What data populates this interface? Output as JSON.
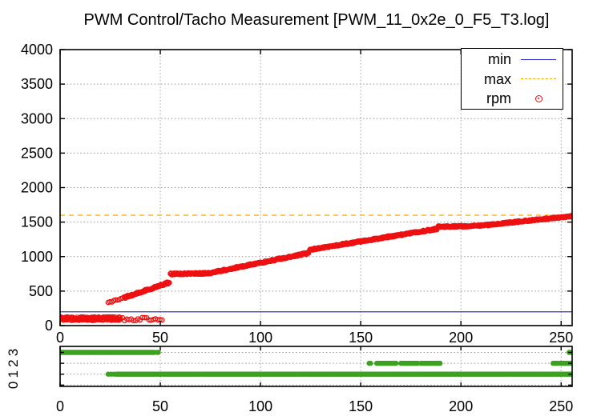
{
  "title": "PWM Control/Tacho Measurement [PWM_11_0x2e_0_F5_T3.log]",
  "colors": {
    "min": "#3434c8",
    "max": "#ffa500",
    "rpm": "#ee1111",
    "duty": "#3da120",
    "grid": "#9c9c9c",
    "axis": "#000000",
    "background": "#ffffff"
  },
  "legend": {
    "position": "top-right",
    "entries": [
      {
        "label": "min",
        "sample": "solid-line"
      },
      {
        "label": "max",
        "sample": "dashed-line"
      },
      {
        "label": "rpm",
        "sample": "open-circle"
      }
    ]
  },
  "chart_data": [
    {
      "name": "main-rpm-plot",
      "type": "scatter",
      "title": "PWM Control/Tacho Measurement [PWM_11_0x2e_0_F5_T3.log]",
      "xlim": [
        0,
        255.5
      ],
      "ylim": [
        0,
        4000
      ],
      "xticks": [
        0,
        50,
        100,
        150,
        200,
        250
      ],
      "yticks": [
        0,
        500,
        1000,
        1500,
        2000,
        2500,
        3000,
        3500,
        4000
      ],
      "grid": true,
      "series": [
        {
          "name": "min",
          "type": "hline",
          "y": 200,
          "style": "solid"
        },
        {
          "name": "max",
          "type": "hline",
          "y": 1600,
          "style": "dashed"
        },
        {
          "name": "rpm",
          "type": "scatter-segments",
          "marker": "open-circle",
          "key_points": [
            [
              24,
              330
            ],
            [
              54,
              620
            ],
            [
              55,
              750
            ],
            [
              74,
              760
            ],
            [
              124,
              1050
            ],
            [
              125,
              1100
            ],
            [
              188,
              1400
            ],
            [
              189,
              1435
            ],
            [
              210,
              1448
            ],
            [
              255,
              1588
            ]
          ],
          "segments": [
            {
              "x0": 24,
              "x1": 32,
              "y0": 330,
              "y1": 405,
              "step": 0.9,
              "jitter": 10
            },
            {
              "x0": 32,
              "x1": 54.5,
              "y0": 405,
              "y1": 625,
              "step": 0.3,
              "jitter": 14
            },
            {
              "x0": 55,
              "x1": 74,
              "y0": 748,
              "y1": 758,
              "step": 0.25,
              "jitter": 12
            },
            {
              "x0": 74,
              "x1": 124,
              "y0": 758,
              "y1": 1052,
              "step": 0.25,
              "jitter": 13
            },
            {
              "x0": 124.5,
              "x1": 188,
              "y0": 1098,
              "y1": 1402,
              "step": 0.25,
              "jitter": 13
            },
            {
              "x0": 188.5,
              "x1": 209,
              "y0": 1432,
              "y1": 1446,
              "step": 0.25,
              "jitter": 11
            },
            {
              "x0": 209,
              "x1": 255.5,
              "y0": 1446,
              "y1": 1588,
              "step": 0.25,
              "jitter": 11
            }
          ],
          "noise_band": [
            {
              "x0": 0,
              "x1": 30,
              "y0": 100,
              "y1": 100,
              "step": 0.18,
              "jitter": 26
            },
            {
              "x0": 30,
              "x1": 52,
              "y0": 95,
              "y1": 95,
              "step": 1.1,
              "jitter": 24
            }
          ]
        }
      ]
    },
    {
      "name": "duty-subplot",
      "type": "scatter",
      "xlim": [
        0,
        255.5
      ],
      "ylim": [
        -0.12,
        3.55
      ],
      "xticks": [
        0,
        50,
        100,
        150,
        200,
        250
      ],
      "yticks": [
        0,
        1,
        2,
        3
      ],
      "ytick_rotation": -90,
      "grid": true,
      "series": [
        {
          "name": "duty-level",
          "marker": "filled-circle",
          "segments": [
            {
              "y": 3,
              "x0": 0,
              "x1": 47,
              "step": 0.5
            },
            {
              "y": 3,
              "x0": 48.3,
              "x1": 49,
              "step": 0.7
            },
            {
              "y": 3,
              "x0": 254,
              "x1": 255.5,
              "step": 0.7
            },
            {
              "y": 1,
              "x0": 24,
              "x1": 28,
              "step": 1.4
            },
            {
              "y": 1,
              "x0": 28,
              "x1": 255.5,
              "step": 0.5
            },
            {
              "y": 2,
              "x0": 154.2,
              "x1": 154.9,
              "step": 0.7
            },
            {
              "y": 2,
              "x0": 158,
              "x1": 168,
              "step": 0.6
            },
            {
              "y": 2,
              "x0": 170,
              "x1": 178.5,
              "step": 0.6
            },
            {
              "y": 2,
              "x0": 180,
              "x1": 190,
              "step": 0.6
            },
            {
              "y": 2,
              "x0": 246,
              "x1": 248.5,
              "step": 0.6
            },
            {
              "y": 2,
              "x0": 249.5,
              "x1": 255.5,
              "step": 0.6
            }
          ]
        }
      ]
    }
  ]
}
